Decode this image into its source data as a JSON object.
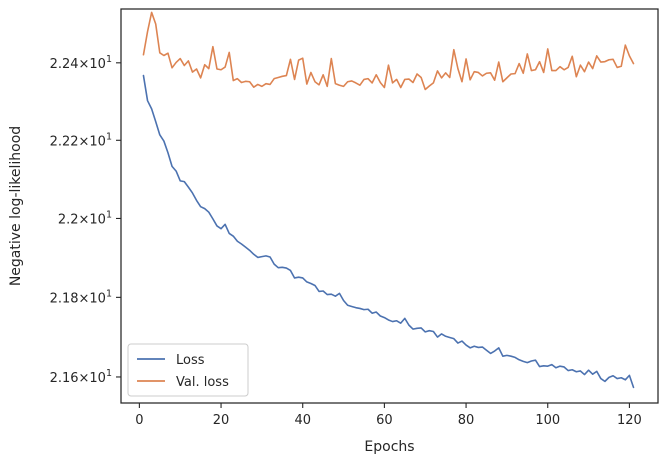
{
  "chart_data": {
    "type": "line",
    "title": "",
    "xlabel": "Epochs",
    "ylabel": "Negative log-likelihood",
    "xlim": [
      -4.5,
      127
    ],
    "ylim": [
      21.535,
      22.54
    ],
    "xticks": [
      0,
      20,
      40,
      60,
      80,
      100,
      120
    ],
    "xtick_labels": [
      "0",
      "20",
      "40",
      "60",
      "80",
      "100",
      "120"
    ],
    "yticks": [
      21.6,
      21.8,
      22.0,
      22.2,
      22.4
    ],
    "ytick_labels": [
      {
        "mantissa": "2.16",
        "exp": "1"
      },
      {
        "mantissa": "2.18",
        "exp": "1"
      },
      {
        "mantissa": "2.2",
        "exp": "1"
      },
      {
        "mantissa": "2.22",
        "exp": "1"
      },
      {
        "mantissa": "2.24",
        "exp": "1"
      }
    ],
    "yscale": "log",
    "grid": false,
    "legend_position": "lower-left",
    "series": [
      {
        "name": "Loss",
        "color": "#4c72b0",
        "x": [
          1,
          2,
          3,
          4,
          5,
          6,
          7,
          8,
          9,
          10,
          11,
          12,
          13,
          14,
          15,
          16,
          17,
          18,
          19,
          20,
          21,
          22,
          23,
          24,
          25,
          26,
          27,
          28,
          29,
          30,
          31,
          32,
          33,
          34,
          35,
          36,
          37,
          38,
          39,
          40,
          41,
          42,
          43,
          44,
          45,
          46,
          47,
          48,
          49,
          50,
          51,
          52,
          53,
          54,
          55,
          56,
          57,
          58,
          59,
          60,
          61,
          62,
          63,
          64,
          65,
          66,
          67,
          68,
          69,
          70,
          71,
          72,
          73,
          74,
          75,
          76,
          77,
          78,
          79,
          80,
          81,
          82,
          83,
          84,
          85,
          86,
          87,
          88,
          89,
          90,
          91,
          92,
          93,
          94,
          95,
          96,
          97,
          98,
          99,
          100,
          101,
          102,
          103,
          104,
          105,
          106,
          107,
          108,
          109,
          110,
          111,
          112,
          113,
          114,
          115,
          116,
          117,
          118,
          119,
          120,
          121
        ],
        "values": [
          22.367,
          22.302,
          22.281,
          22.248,
          22.214,
          22.198,
          22.168,
          22.133,
          22.121,
          22.096,
          22.094,
          22.08,
          22.065,
          22.046,
          22.03,
          22.025,
          22.016,
          21.999,
          21.981,
          21.974,
          21.985,
          21.962,
          21.955,
          21.942,
          21.935,
          21.927,
          21.919,
          21.909,
          21.901,
          21.903,
          21.905,
          21.902,
          21.884,
          21.875,
          21.876,
          21.874,
          21.868,
          21.849,
          21.851,
          21.849,
          21.839,
          21.835,
          21.83,
          21.815,
          21.816,
          21.807,
          21.808,
          21.803,
          21.81,
          21.792,
          21.78,
          21.777,
          21.774,
          21.772,
          21.769,
          21.77,
          21.76,
          21.763,
          21.753,
          21.749,
          21.743,
          21.739,
          21.741,
          21.735,
          21.747,
          21.73,
          21.72,
          21.722,
          21.723,
          21.713,
          21.716,
          21.714,
          21.7,
          21.708,
          21.702,
          21.699,
          21.696,
          21.685,
          21.69,
          21.68,
          21.673,
          21.677,
          21.674,
          21.675,
          21.667,
          21.659,
          21.665,
          21.673,
          21.652,
          21.654,
          21.652,
          21.649,
          21.643,
          21.639,
          21.636,
          21.64,
          21.642,
          21.626,
          21.628,
          21.627,
          21.631,
          21.623,
          21.627,
          21.625,
          21.616,
          21.618,
          21.613,
          21.615,
          21.606,
          21.617,
          21.607,
          21.614,
          21.596,
          21.589,
          21.599,
          21.603,
          21.596,
          21.598,
          21.593,
          21.604,
          21.574
        ],
        "note_excluded": ""
      },
      {
        "name": "Val. loss",
        "color": "#dd8452",
        "x": [
          1,
          2,
          3,
          4,
          5,
          6,
          7,
          8,
          9,
          10,
          11,
          12,
          13,
          14,
          15,
          16,
          17,
          18,
          19,
          20,
          21,
          22,
          23,
          24,
          25,
          26,
          27,
          28,
          29,
          30,
          31,
          32,
          33,
          34,
          35,
          36,
          37,
          38,
          39,
          40,
          41,
          42,
          43,
          44,
          45,
          46,
          47,
          48,
          49,
          50,
          51,
          52,
          53,
          54,
          55,
          56,
          57,
          58,
          59,
          60,
          61,
          62,
          63,
          64,
          65,
          66,
          67,
          68,
          69,
          70,
          71,
          72,
          73,
          74,
          75,
          76,
          77,
          78,
          79,
          80,
          81,
          82,
          83,
          84,
          85,
          86,
          87,
          88,
          89,
          90,
          91,
          92,
          93,
          94,
          95,
          96,
          97,
          98,
          99,
          100,
          101,
          102,
          103,
          104,
          105,
          106,
          107,
          108,
          109,
          110,
          111,
          112,
          113,
          114,
          115,
          116,
          117,
          118,
          119,
          120,
          121
        ],
        "values": [
          22.421,
          22.481,
          22.531,
          22.501,
          22.426,
          22.419,
          22.425,
          22.387,
          22.401,
          22.411,
          22.393,
          22.405,
          22.376,
          22.384,
          22.361,
          22.395,
          22.385,
          22.442,
          22.384,
          22.382,
          22.389,
          22.427,
          22.354,
          22.359,
          22.349,
          22.352,
          22.351,
          22.337,
          22.344,
          22.339,
          22.346,
          22.344,
          22.359,
          22.362,
          22.365,
          22.367,
          22.409,
          22.357,
          22.407,
          22.412,
          22.345,
          22.375,
          22.351,
          22.343,
          22.369,
          22.339,
          22.411,
          22.346,
          22.342,
          22.339,
          22.351,
          22.353,
          22.348,
          22.342,
          22.357,
          22.359,
          22.348,
          22.369,
          22.349,
          22.336,
          22.394,
          22.348,
          22.357,
          22.336,
          22.357,
          22.358,
          22.349,
          22.371,
          22.362,
          22.331,
          22.34,
          22.348,
          22.379,
          22.361,
          22.374,
          22.362,
          22.434,
          22.385,
          22.351,
          22.41,
          22.356,
          22.377,
          22.375,
          22.366,
          22.373,
          22.374,
          22.355,
          22.402,
          22.351,
          22.361,
          22.371,
          22.372,
          22.398,
          22.373,
          22.423,
          22.38,
          22.382,
          22.403,
          22.375,
          22.436,
          22.38,
          22.38,
          22.39,
          22.382,
          22.388,
          22.417,
          22.364,
          22.394,
          22.377,
          22.402,
          22.385,
          22.418,
          22.402,
          22.403,
          22.408,
          22.409,
          22.388,
          22.391,
          22.446,
          22.418,
          22.398
        ]
      }
    ]
  }
}
